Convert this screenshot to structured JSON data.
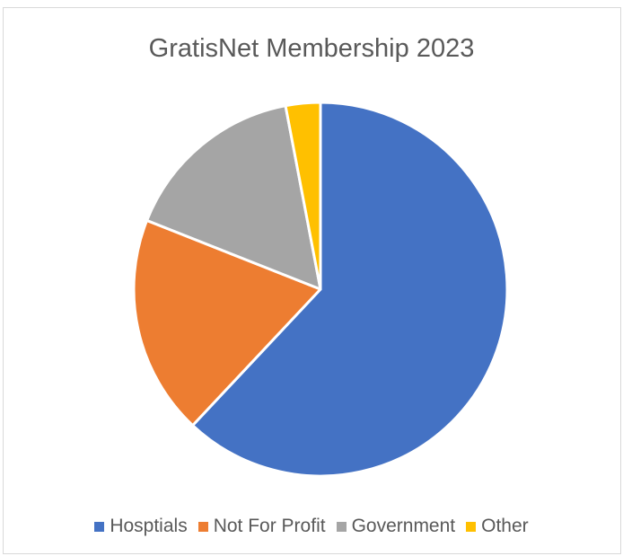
{
  "chart_data": {
    "type": "pie",
    "title": "GratisNet Membership 2023",
    "categories": [
      "Hosptials",
      "Not For Profit",
      "Government",
      "Other"
    ],
    "values": [
      62,
      19,
      16,
      3
    ],
    "colors": [
      "#4472C4",
      "#ED7D31",
      "#A5A5A5",
      "#FFC000"
    ],
    "legend_position": "bottom"
  }
}
